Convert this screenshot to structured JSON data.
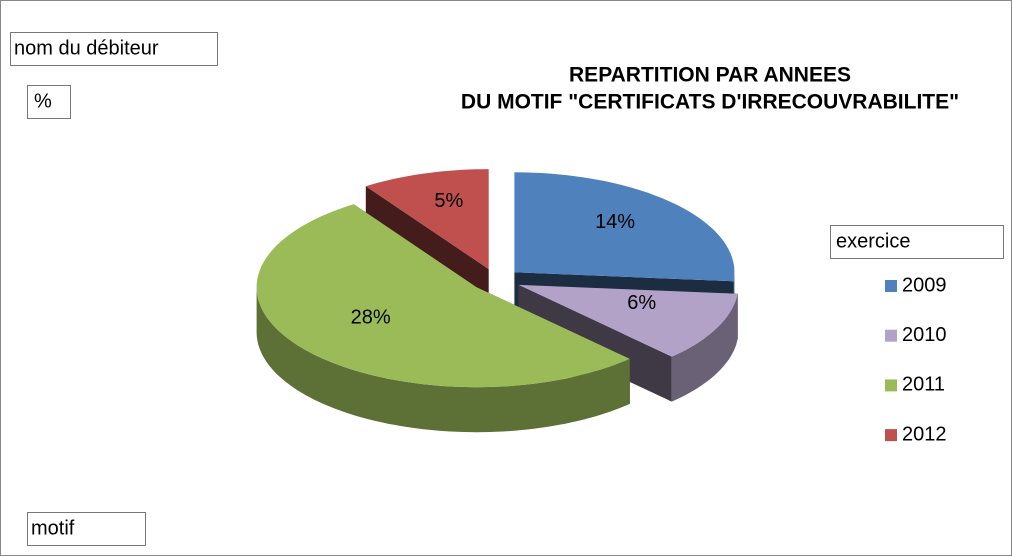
{
  "chart_data": {
    "type": "pie3d",
    "title": [
      "REPARTITION PAR ANNEES",
      "DU MOTIF \"CERTIFICATS D'IRRECOUVRABILITE\""
    ],
    "field_buttons": {
      "filter": "nom du débiteur",
      "values": "%",
      "axis": "motif"
    },
    "legend_title": "exercice",
    "legend_position": "right",
    "categories": [
      "2009",
      "2010",
      "2011",
      "2012"
    ],
    "values": [
      14,
      6,
      28,
      5
    ],
    "value_labels": [
      "14%",
      "6%",
      "28%",
      "5%"
    ],
    "colors": [
      "#4F81BD",
      "#B3A2C7",
      "#9BBB59",
      "#C0504D"
    ]
  }
}
